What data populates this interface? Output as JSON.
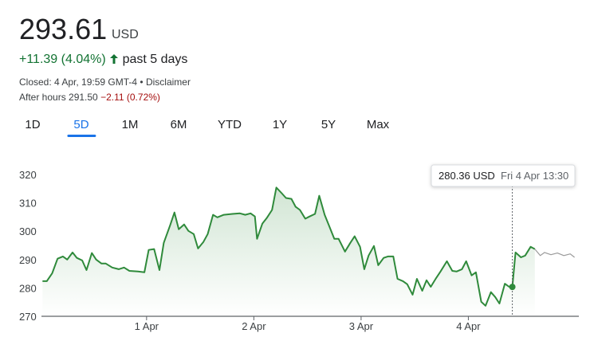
{
  "header": {
    "price": "293.61",
    "currency": "USD",
    "change": "+11.39 (4.04%)",
    "period": "past 5 days",
    "closed": "Closed: 4 Apr, 19:59 GMT-4 • ",
    "disclaimer": "Disclaimer",
    "after_hours": "After hours 291.50",
    "after_hours_change": "−2.11 (0.72%)"
  },
  "tabs": {
    "items": [
      "1D",
      "5D",
      "1M",
      "6M",
      "YTD",
      "1Y",
      "5Y",
      "Max"
    ],
    "selected": 1
  },
  "chart_data": {
    "type": "line",
    "xlim": [
      -0.98,
      4.03
    ],
    "xticks": [
      {
        "value": 0,
        "label": "1 Apr"
      },
      {
        "value": 1,
        "label": "2 Apr"
      },
      {
        "value": 2,
        "label": "3 Apr"
      },
      {
        "value": 3,
        "label": "4 Apr"
      }
    ],
    "ylim": [
      270,
      320
    ],
    "yticks": [
      270,
      280,
      290,
      300,
      310,
      320
    ],
    "series": [
      {
        "color": "#2f8a3b",
        "area": true,
        "x": [
          -0.97,
          -0.93,
          -0.88,
          -0.83,
          -0.78,
          -0.74,
          -0.69,
          -0.65,
          -0.6,
          -0.56,
          -0.51,
          -0.47,
          -0.42,
          -0.38,
          -0.32,
          -0.26,
          -0.21,
          -0.16,
          -0.08,
          -0.02,
          0.02,
          0.07,
          0.12,
          0.16,
          0.22,
          0.26,
          0.3,
          0.35,
          0.39,
          0.44,
          0.48,
          0.53,
          0.57,
          0.62,
          0.66,
          0.72,
          0.8,
          0.87,
          0.92,
          0.97,
          1.01,
          1.03,
          1.08,
          1.12,
          1.17,
          1.21,
          1.26,
          1.3,
          1.35,
          1.39,
          1.43,
          1.48,
          1.52,
          1.57,
          1.61,
          1.66,
          1.7,
          1.75,
          1.79,
          1.85,
          1.9,
          1.94,
          1.99,
          2.03,
          2.07,
          2.12,
          2.16,
          2.21,
          2.25,
          2.3,
          2.34,
          2.39,
          2.43,
          2.48,
          2.52,
          2.57,
          2.61,
          2.65,
          2.7,
          2.74,
          2.8,
          2.85,
          2.89,
          2.94,
          2.98,
          3.03,
          3.07,
          3.12,
          3.16,
          3.21,
          3.25,
          3.29,
          3.34,
          3.38,
          3.41,
          3.44,
          3.49,
          3.53,
          3.58,
          3.62
        ],
        "values": [
          282.4,
          282.4,
          285.2,
          290.3,
          291.1,
          290,
          292.5,
          290.6,
          289.7,
          286.3,
          292.3,
          290,
          288.6,
          288.6,
          287.2,
          286.6,
          287.2,
          286,
          285.8,
          285.5,
          293.4,
          293.7,
          286.3,
          295.9,
          302.1,
          306.6,
          300.7,
          302.4,
          300.1,
          299,
          293.9,
          296.2,
          299,
          305.8,
          304.9,
          305.8,
          306.1,
          306.3,
          305.8,
          306.3,
          305.2,
          297.3,
          302.7,
          304.6,
          307.5,
          315.4,
          313.4,
          311.7,
          311.4,
          308.6,
          307.5,
          304.4,
          305.2,
          306.1,
          312.5,
          305.8,
          302.1,
          297.3,
          297.3,
          292.8,
          295.9,
          298.2,
          294.5,
          286.6,
          291.4,
          294.8,
          288,
          290.6,
          291.1,
          291.1,
          283.2,
          282.4,
          281.3,
          277.6,
          283.2,
          279,
          282.7,
          280.4,
          283.5,
          285.8,
          289.4,
          286,
          285.8,
          286.6,
          289.4,
          284.4,
          285.5,
          275.1,
          273.7,
          278.5,
          276.8,
          274.5,
          281.5,
          280.4,
          280.36,
          292.5,
          290.8,
          291.4,
          294.5,
          293.7
        ]
      },
      {
        "color": "#9a9a9a",
        "area": false,
        "x": [
          3.62,
          3.67,
          3.71,
          3.77,
          3.83,
          3.89,
          3.95,
          3.99
        ],
        "values": [
          293.7,
          291.4,
          292.5,
          291.7,
          292.3,
          291.4,
          292,
          290.8
        ]
      }
    ],
    "tooltip": {
      "x": 3.41,
      "value": 280.36,
      "value_label": "280.36 USD",
      "date": "Fri 4 Apr 13:30"
    }
  }
}
